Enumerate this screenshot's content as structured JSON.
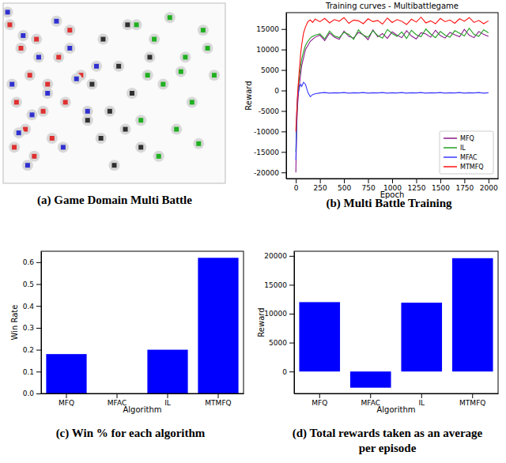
{
  "chart_data": [
    {
      "type": "scatter",
      "caption": "(a) Game Domain Multi Battle",
      "tick_labels": false,
      "marker": "square",
      "xlim": [
        0,
        100
      ],
      "ylim": [
        0,
        100
      ],
      "series": [
        {
          "color": "#e03030",
          "x": [
            3,
            8,
            12,
            6,
            15,
            20,
            10,
            25,
            18,
            30,
            5,
            22,
            35,
            14,
            28
          ],
          "values": [
            88,
            75,
            60,
            45,
            80,
            55,
            30,
            70,
            40,
            85,
            20,
            25,
            60,
            15,
            45
          ]
        },
        {
          "color": "#3030d0",
          "x": [
            2,
            9,
            16,
            4,
            24,
            13,
            30,
            20,
            38,
            27,
            11,
            33,
            42,
            7
          ],
          "values": [
            95,
            82,
            70,
            55,
            90,
            38,
            75,
            50,
            40,
            20,
            10,
            58,
            65,
            28
          ]
        },
        {
          "color": "#20b020",
          "x": [
            60,
            68,
            75,
            82,
            90,
            65,
            72,
            85,
            95,
            78,
            88,
            62,
            70,
            92,
            80
          ],
          "values": [
            88,
            80,
            92,
            70,
            85,
            60,
            55,
            45,
            60,
            30,
            22,
            35,
            15,
            75,
            62
          ]
        },
        {
          "color": "#303030",
          "x": [
            45,
            52,
            40,
            58,
            48,
            55,
            62,
            50,
            44,
            66,
            38,
            56
          ],
          "values": [
            80,
            65,
            55,
            50,
            40,
            30,
            20,
            10,
            25,
            70,
            35,
            88
          ]
        }
      ]
    },
    {
      "type": "line",
      "title": "Training curves - Multibattlegame",
      "caption": "(b) Multi Battle Training",
      "xlabel": "Epoch",
      "ylabel": "Reward",
      "legend": "lower right",
      "xlim": [
        -100,
        2100
      ],
      "xticks": [
        0,
        250,
        500,
        750,
        1000,
        1250,
        1500,
        1750,
        2000
      ],
      "ylim": [
        -21500,
        19000
      ],
      "yticks": [
        -20000,
        -15000,
        -10000,
        -5000,
        0,
        5000,
        10000,
        15000
      ],
      "x": [
        0,
        10,
        20,
        30,
        40,
        50,
        60,
        80,
        100,
        125,
        150,
        175,
        200,
        250,
        300,
        350,
        400,
        450,
        500,
        550,
        600,
        650,
        700,
        750,
        800,
        850,
        900,
        950,
        1000,
        1050,
        1100,
        1150,
        1200,
        1250,
        1300,
        1350,
        1400,
        1450,
        1500,
        1550,
        1600,
        1650,
        1700,
        1750,
        1800,
        1850,
        1900,
        1950,
        2000
      ],
      "series": [
        {
          "name": "MFQ",
          "color": "#8b1a8b",
          "values": [
            -20000,
            -8000,
            -3000,
            0,
            2000,
            4000,
            6000,
            8000,
            10000,
            11000,
            12000,
            12500,
            13000,
            13500,
            12200,
            14000,
            13000,
            12500,
            14500,
            13200,
            12800,
            14200,
            13600,
            12400,
            14800,
            13100,
            13900,
            12700,
            14300,
            13500,
            12900,
            14600,
            13300,
            12600,
            14100,
            13800,
            13000,
            14700,
            13400,
            12800,
            14200,
            13600,
            13100,
            14900,
            13500,
            12900,
            14400,
            13700,
            13200
          ]
        },
        {
          "name": "IL",
          "color": "#22a022",
          "values": [
            -15000,
            -6000,
            -1000,
            2000,
            4000,
            6000,
            7500,
            9500,
            11000,
            12000,
            12800,
            13200,
            13500,
            13800,
            12600,
            14500,
            13300,
            12900,
            14200,
            13700,
            12500,
            14800,
            13500,
            13000,
            14600,
            13400,
            12800,
            14900,
            13900,
            13200,
            14300,
            12700,
            14700,
            13600,
            13100,
            15000,
            13800,
            12900,
            14400,
            13500,
            13000,
            14600,
            14000,
            13300,
            15200,
            13700,
            13200,
            14800,
            14100
          ]
        },
        {
          "name": "MFAC",
          "color": "#3a3aff",
          "values": [
            -17000,
            -5000,
            -1000,
            0,
            1000,
            1500,
            1000,
            2000,
            1500,
            -500,
            -1500,
            -1000,
            -800,
            -600,
            -500,
            -650,
            -550,
            -600,
            -500,
            -650,
            -550,
            -600,
            -500,
            -650,
            -550,
            -600,
            -500,
            -650,
            -550,
            -600,
            -500,
            -650,
            -550,
            -600,
            -500,
            -650,
            -550,
            -600,
            -500,
            -650,
            -550,
            -600,
            -500,
            -650,
            -550,
            -600,
            -500,
            -650,
            -550
          ]
        },
        {
          "name": "MTMFQ",
          "color": "#ff1010",
          "values": [
            -10000,
            -5000,
            0,
            3000,
            6000,
            9000,
            11000,
            14000,
            15500,
            16800,
            17200,
            16600,
            17400,
            16800,
            17600,
            16500,
            17300,
            16900,
            17800,
            16400,
            17200,
            17000,
            16300,
            17500,
            16800,
            17100,
            16200,
            17700,
            16600,
            17300,
            16900,
            16100,
            17400,
            16700,
            17900,
            16500,
            17000,
            16300,
            17600,
            16800,
            17200,
            16400,
            17500,
            16900,
            17800,
            16600,
            17100,
            16300,
            17000
          ]
        }
      ]
    },
    {
      "type": "bar",
      "caption": "(c) Win % for each algorithm",
      "xlabel": "Algorithm",
      "ylabel": "Win Rate",
      "categories": [
        "MFQ",
        "MFAC",
        "IL",
        "MTMFQ"
      ],
      "values": [
        0.18,
        0,
        0.2,
        0.62
      ],
      "color": "#0000ff",
      "ylim": [
        0,
        0.65
      ],
      "yticks": [
        {
          "value": 0,
          "label": "0.0"
        },
        {
          "value": 0.1,
          "label": "0.1"
        },
        {
          "value": 0.2,
          "label": "0.2"
        },
        {
          "value": 0.3,
          "label": "0.3"
        },
        {
          "value": 0.4,
          "label": "0.4"
        },
        {
          "value": 0.5,
          "label": "0.5"
        },
        {
          "value": 0.6,
          "label": "0.6"
        }
      ]
    },
    {
      "type": "bar",
      "caption": [
        "(d) Total rewards taken as an average",
        "per episode"
      ],
      "xlabel": "Algorithm",
      "ylabel": "Reward",
      "categories": [
        "MFQ",
        "MFAC",
        "IL",
        "MTMFQ"
      ],
      "values": [
        12000,
        -2800,
        11900,
        19600
      ],
      "color": "#0000ff",
      "ylim": [
        -3800,
        20800
      ],
      "yticks": [
        0,
        5000,
        10000,
        15000,
        20000
      ]
    }
  ]
}
